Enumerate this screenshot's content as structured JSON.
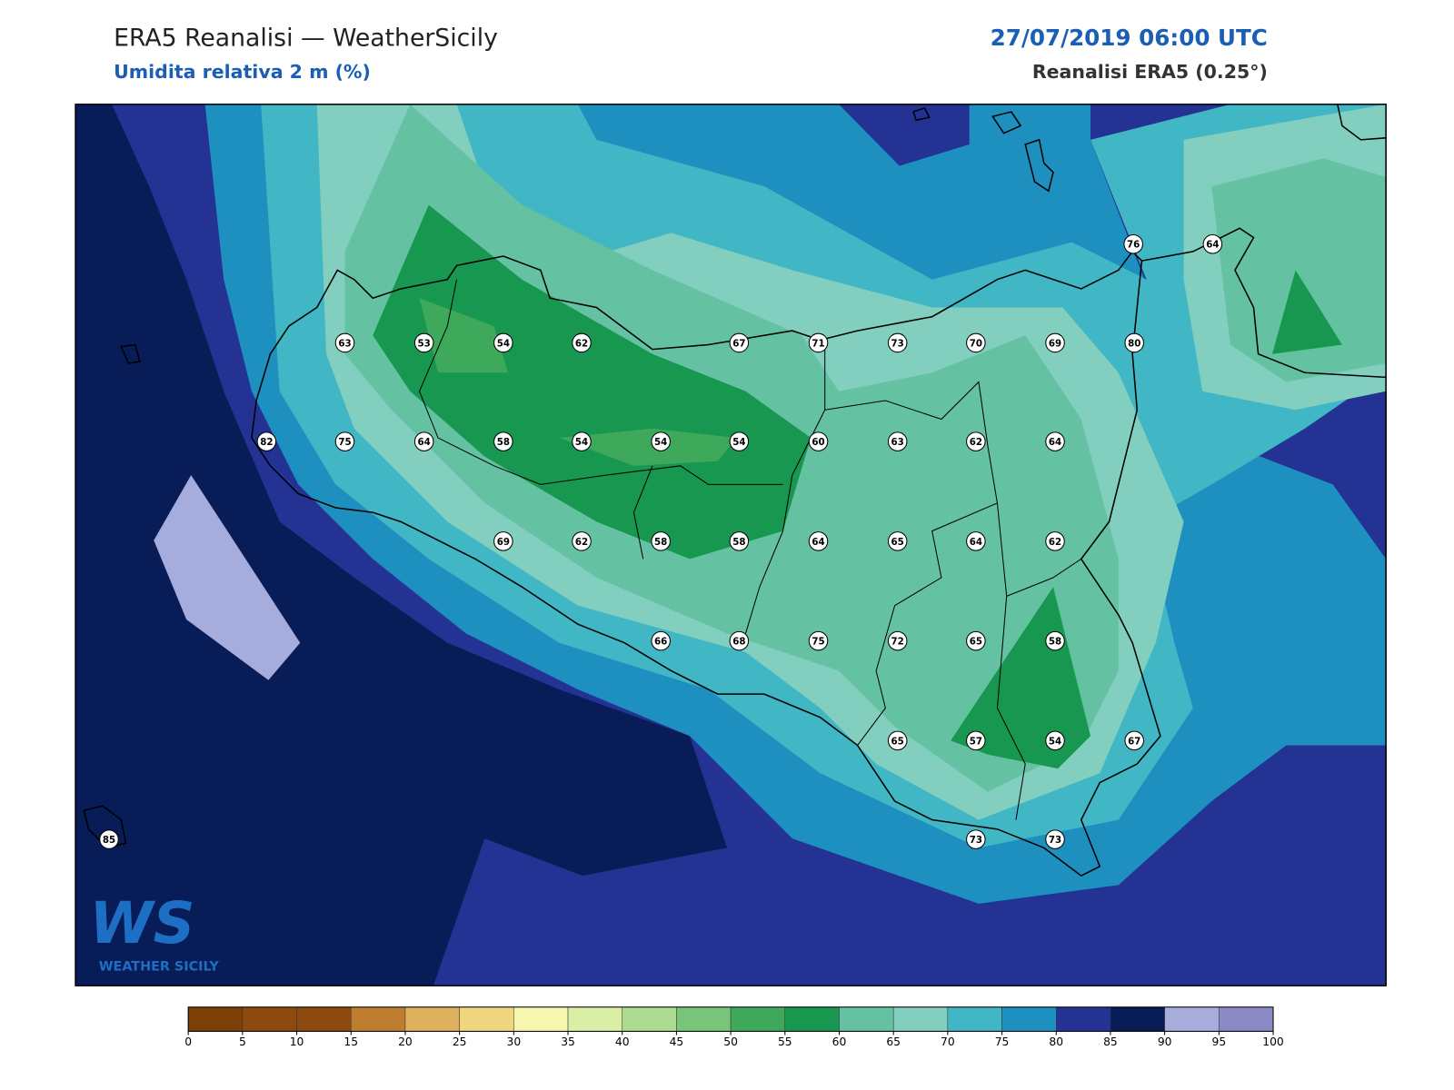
{
  "header": {
    "title": "ERA5 Reanalisi — WeatherSicily",
    "subtitle": "Umidita relativa 2 m (%)",
    "date": "27/07/2019 06:00 UTC",
    "source": "Reanalisi ERA5 (0.25°)"
  },
  "stations": [
    63,
    53,
    54,
    62,
    67,
    71,
    73,
    70,
    69,
    80,
    76,
    64,
    82,
    75,
    64,
    58,
    54,
    54,
    54,
    60,
    63,
    62,
    64,
    69,
    62,
    58,
    58,
    64,
    65,
    64,
    62,
    66,
    68,
    75,
    72,
    65,
    58,
    65,
    57,
    54,
    67,
    85,
    73,
    73
  ],
  "logo": {
    "mark": "WS",
    "name": "WEATHER SICILY"
  },
  "colorbar": {
    "ticks": [
      0,
      5,
      10,
      15,
      20,
      25,
      30,
      35,
      40,
      45,
      50,
      55,
      60,
      65,
      70,
      75,
      80,
      85,
      90,
      95,
      100
    ],
    "colors": [
      "#7b3f07",
      "#8c4a0f",
      "#8c4a0f",
      "#bf7e2f",
      "#dfb15f",
      "#f0d57f",
      "#f6f6ae",
      "#d9efa6",
      "#acdc8f",
      "#78c479",
      "#3ea95a",
      "#17974f",
      "#64c2a3",
      "#82cfbf",
      "#41b6c4",
      "#1e90c0",
      "#243294",
      "#081d58",
      "#a6acdb",
      "#8b8ac6"
    ]
  }
}
